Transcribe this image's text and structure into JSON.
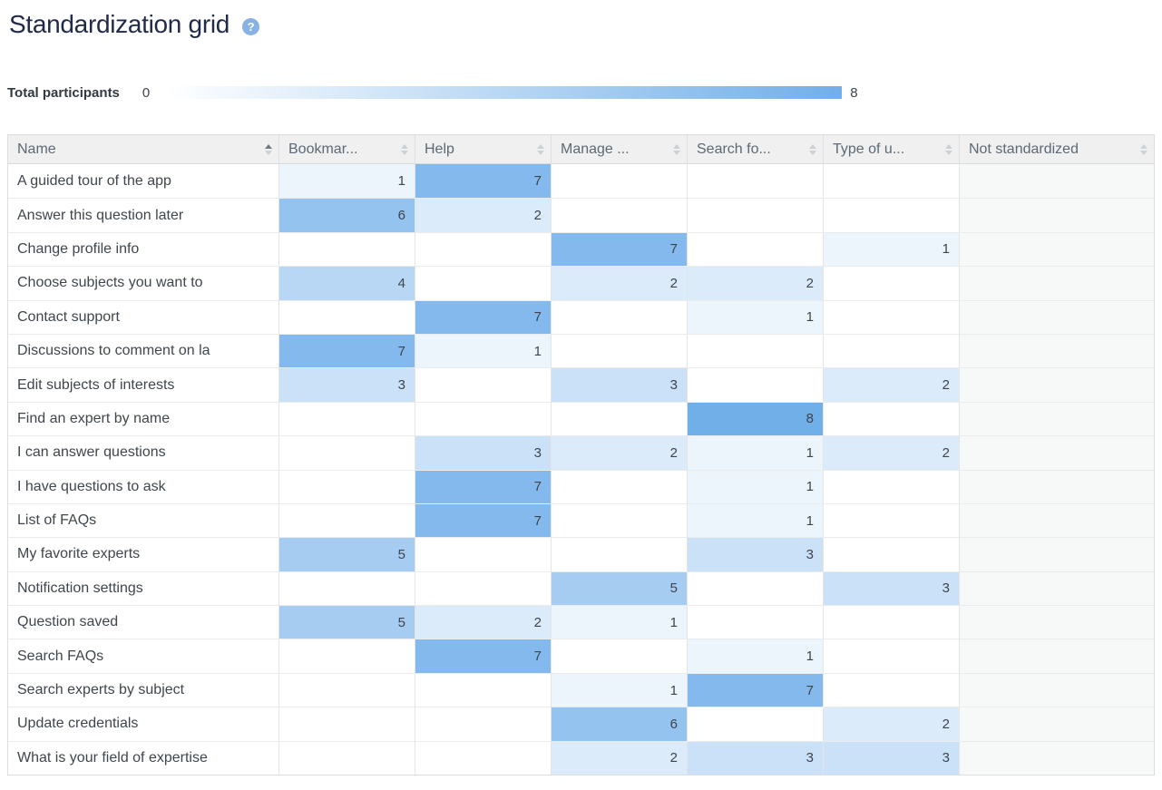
{
  "page": {
    "title": "Standardization grid",
    "help_icon_glyph": "?"
  },
  "legend": {
    "label": "Total participants",
    "min": "0",
    "max": "8"
  },
  "colors": {
    "heat_max": "#71afe9",
    "heat_min": "#ffffff",
    "help_icon_bg": "#88b2e4"
  },
  "table": {
    "name_column": {
      "label": "Name",
      "sorted": "asc"
    }
  },
  "chart_data": {
    "type": "heatmap",
    "title": "Standardization grid",
    "legend_label": "Total participants",
    "scale": {
      "min": 0,
      "max": 8
    },
    "columns": [
      "Bookmar...",
      "Help",
      "Manage ...",
      "Search fo...",
      "Type of u...",
      "Not standardized"
    ],
    "rows": [
      {
        "name": "A guided tour of the app",
        "values": [
          1,
          7,
          null,
          null,
          null,
          null
        ]
      },
      {
        "name": "Answer this question later",
        "values": [
          6,
          2,
          null,
          null,
          null,
          null
        ]
      },
      {
        "name": "Change profile info",
        "values": [
          null,
          null,
          7,
          null,
          1,
          null
        ]
      },
      {
        "name": "Choose subjects you want to",
        "values": [
          4,
          null,
          2,
          2,
          null,
          null
        ]
      },
      {
        "name": "Contact support",
        "values": [
          null,
          7,
          null,
          1,
          null,
          null
        ]
      },
      {
        "name": "Discussions to comment on la",
        "values": [
          7,
          1,
          null,
          null,
          null,
          null
        ]
      },
      {
        "name": "Edit subjects of interests",
        "values": [
          3,
          null,
          3,
          null,
          2,
          null
        ]
      },
      {
        "name": "Find an expert by name",
        "values": [
          null,
          null,
          null,
          8,
          null,
          null
        ]
      },
      {
        "name": "I can answer questions",
        "values": [
          null,
          3,
          2,
          1,
          2,
          null
        ]
      },
      {
        "name": "I have questions to ask",
        "values": [
          null,
          7,
          null,
          1,
          null,
          null
        ]
      },
      {
        "name": "List of FAQs",
        "values": [
          null,
          7,
          null,
          1,
          null,
          null
        ]
      },
      {
        "name": "My favorite experts",
        "values": [
          5,
          null,
          null,
          3,
          null,
          null
        ]
      },
      {
        "name": "Notification settings",
        "values": [
          null,
          null,
          5,
          null,
          3,
          null
        ]
      },
      {
        "name": "Question saved",
        "values": [
          5,
          2,
          1,
          null,
          null,
          null
        ]
      },
      {
        "name": "Search FAQs",
        "values": [
          null,
          7,
          null,
          1,
          null,
          null
        ]
      },
      {
        "name": "Search experts by subject",
        "values": [
          null,
          null,
          1,
          7,
          null,
          null
        ]
      },
      {
        "name": "Update credentials",
        "values": [
          null,
          null,
          6,
          null,
          2,
          null
        ]
      },
      {
        "name": "What is your field of expertise",
        "values": [
          null,
          null,
          2,
          3,
          3,
          null
        ]
      }
    ]
  }
}
